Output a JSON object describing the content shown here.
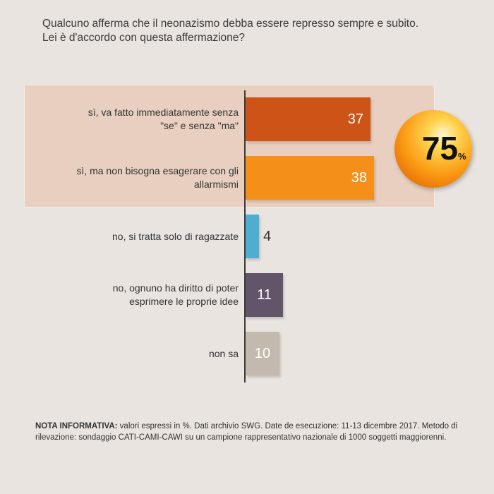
{
  "question": {
    "line1": "Qualcuno afferma che il neonazismo debba essere represso sempre e subito.",
    "line2": "Lei è d'accordo con questa affermazione?"
  },
  "chart_data": {
    "type": "bar",
    "orientation": "horizontal",
    "unit": "%",
    "xlim": [
      0,
      40
    ],
    "categories": [
      "sì, va fatto immediatamente senza \"se\" e senza \"ma\"",
      "sì, ma non bisogna esagerare con gli allarmismi",
      "no, si tratta solo di ragazzate",
      "no, ognuno ha diritto di poter esprimere le proprie idee",
      "non sa"
    ],
    "values": [
      37,
      38,
      4,
      11,
      10
    ],
    "bars": [
      {
        "label_lines": [
          "sì, va fatto immediatamente senza",
          "\"se\" e senza \"ma\""
        ],
        "value": 37,
        "display": "37",
        "color": "#cd5416",
        "label_inside": true
      },
      {
        "label_lines": [
          "sì, ma non bisogna esagerare con gli",
          "allarmismi"
        ],
        "value": 38,
        "display": "38",
        "color": "#f49019",
        "label_inside": true
      },
      {
        "label_lines": [
          "no, si tratta solo di ragazzate"
        ],
        "value": 4,
        "display": "4",
        "color": "#4eaed1",
        "label_inside": false
      },
      {
        "label_lines": [
          "no, ognuno ha diritto di poter",
          "esprimere le proprie idee"
        ],
        "value": 11,
        "display": "11",
        "color": "#625569",
        "label_inside": true
      },
      {
        "label_lines": [
          "non sa"
        ],
        "value": 10,
        "display": "10",
        "color": "#c3b9ae",
        "label_inside": true
      }
    ],
    "highlight": {
      "bars": [
        0,
        1
      ],
      "total": "75",
      "unit": "%",
      "background": "#e8cfbf"
    }
  },
  "note": {
    "label": "NOTA INFORMATIVA:",
    "text": " valori espressi in %. Dati archivio SWG. Date de esecuzione: 11-13 dicembre 2017. Metodo di rilevazione: sondaggio CATI-CAMI-CAWI su un campione rappresentativo nazionale di 1000 soggetti maggiorenni."
  }
}
